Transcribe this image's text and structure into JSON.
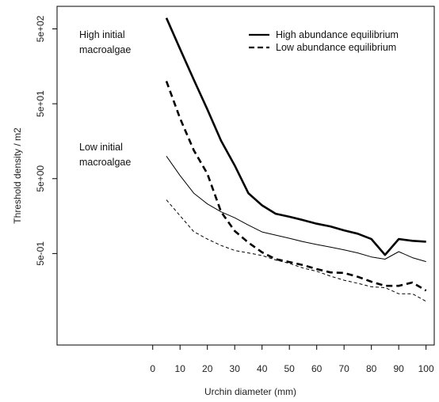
{
  "chart_data": {
    "type": "line",
    "xlabel": "Urchin diameter (mm)",
    "ylabel": "Threshold density / m2",
    "xlim": [
      -35,
      103
    ],
    "y_scale": "log",
    "ylim": [
      0.03,
      1000
    ],
    "x_ticks": [
      0,
      10,
      20,
      30,
      40,
      50,
      60,
      70,
      80,
      90,
      100
    ],
    "x_tick_labels": [
      "0",
      "10",
      "20",
      "30",
      "40",
      "50",
      "60",
      "70",
      "80",
      "90",
      "100"
    ],
    "y_ticks": [
      0.5,
      5,
      50,
      500
    ],
    "y_tick_labels": [
      "5e-01",
      "5e+00",
      "5e+01",
      "5e+02"
    ],
    "legend_position": "top-right",
    "legend": [
      {
        "label": "High abundance equilibrium",
        "style": "solid"
      },
      {
        "label": "Low abundance equilibrium",
        "style": "dashed"
      }
    ],
    "annotations": [
      {
        "lines": [
          "High initial",
          "macroalgae"
        ]
      },
      {
        "lines": [
          "Low initial",
          "macroalgae"
        ]
      }
    ],
    "x": [
      5,
      10,
      15,
      20,
      25,
      30,
      35,
      40,
      45,
      50,
      55,
      60,
      65,
      70,
      75,
      80,
      85,
      90,
      95,
      100
    ],
    "series": [
      {
        "group": "High initial macroalgae",
        "style": "solid",
        "values": [
          700,
          270,
          105,
          42,
          16,
          7.5,
          3.2,
          2.2,
          1.7,
          1.55,
          1.4,
          1.25,
          1.15,
          1.02,
          0.92,
          0.78,
          0.48,
          0.78,
          0.74,
          0.72
        ],
        "color": "#000000"
      },
      {
        "group": "High initial macroalgae",
        "style": "dashed",
        "values": [
          100,
          32,
          12,
          5.8,
          1.8,
          1.0,
          0.7,
          0.52,
          0.42,
          0.385,
          0.35,
          0.31,
          0.28,
          0.275,
          0.245,
          0.21,
          0.185,
          0.185,
          0.205,
          0.16
        ],
        "color": "#000000"
      },
      {
        "group": "Low initial macroalgae",
        "style": "solid",
        "values": [
          10,
          5.5,
          3.2,
          2.3,
          1.8,
          1.5,
          1.2,
          0.97,
          0.88,
          0.8,
          0.72,
          0.66,
          0.61,
          0.56,
          0.51,
          0.45,
          0.42,
          0.53,
          0.44,
          0.39
        ],
        "color": "#000000"
      },
      {
        "group": "Low initial macroalgae",
        "style": "dashed",
        "values": [
          2.6,
          1.6,
          0.98,
          0.78,
          0.64,
          0.55,
          0.51,
          0.47,
          0.41,
          0.37,
          0.32,
          0.29,
          0.25,
          0.22,
          0.2,
          0.18,
          0.175,
          0.145,
          0.145,
          0.115
        ],
        "color": "#000000"
      }
    ]
  }
}
